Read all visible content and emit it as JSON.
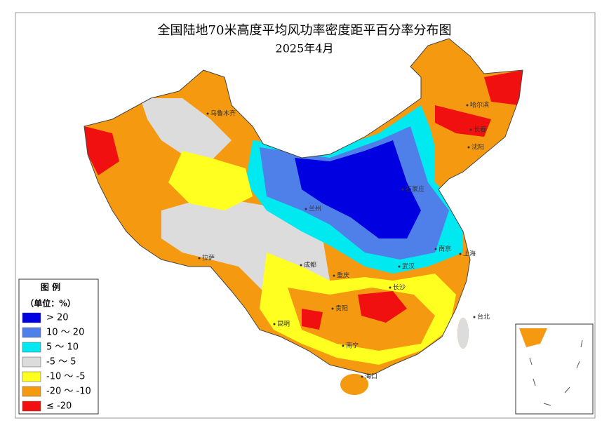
{
  "title": "全国陆地70米高度平均风功率密度距平百分率分布图",
  "subtitle": "2025年4月",
  "legend": {
    "title": "图  例",
    "unit": "（单位：%）",
    "items": [
      {
        "label": "> 20",
        "color": "#0000e0"
      },
      {
        "label": "10 ～ 20",
        "color": "#4f7fe8"
      },
      {
        "label": "5 ～ 10",
        "color": "#00e8f0"
      },
      {
        "label": "-5 ～ 5",
        "color": "#dcdcdc"
      },
      {
        "label": "-10 ～ -5",
        "color": "#ffff20"
      },
      {
        "label": "-20 ～ -10",
        "color": "#f59a10"
      },
      {
        "label": "≤ -20",
        "color": "#f01010"
      }
    ]
  },
  "cities": [
    "乌鲁木齐",
    "哈尔滨",
    "长春",
    "沈阳",
    "石家庄",
    "兰州",
    "拉萨",
    "成都",
    "重庆",
    "贵阳",
    "昆明",
    "南宁",
    "海口",
    "长沙",
    "武汉",
    "南京",
    "上海",
    "台北"
  ]
}
